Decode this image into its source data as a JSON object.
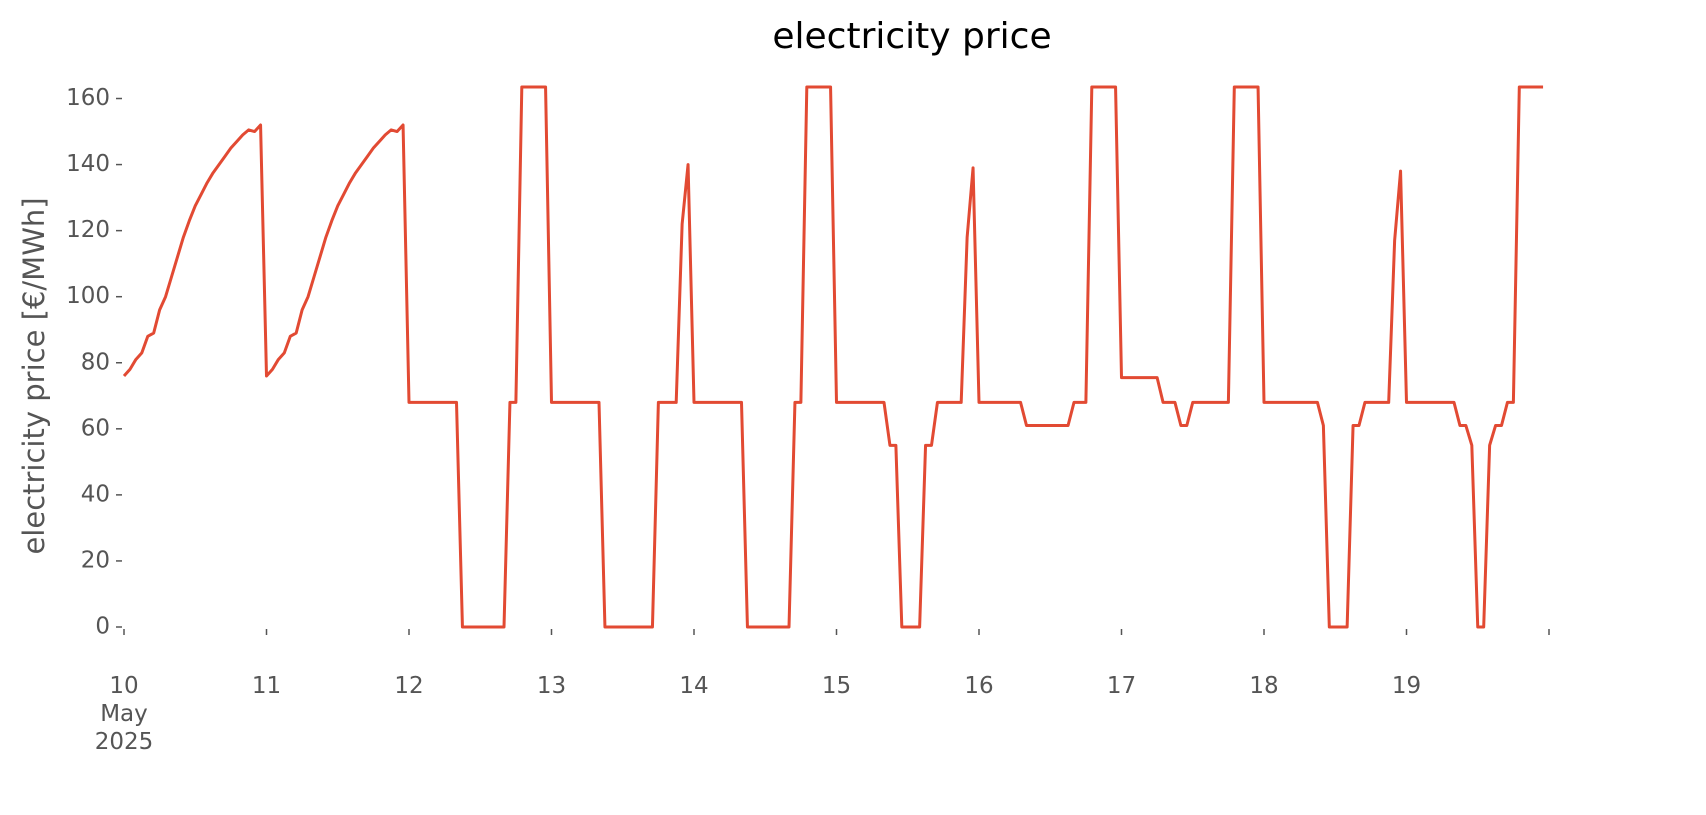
{
  "chart_data": {
    "type": "line",
    "title": "electricity price",
    "y_label": "electricity price [€/MWh]",
    "color": "#e24a33",
    "grid": false,
    "x": [
      "2025-05-10 00:00",
      "2025-05-10 01:00",
      "2025-05-10 02:00",
      "2025-05-10 03:00",
      "2025-05-10 04:00",
      "2025-05-10 05:00",
      "2025-05-10 06:00",
      "2025-05-10 07:00",
      "2025-05-10 08:00",
      "2025-05-10 09:00",
      "2025-05-10 10:00",
      "2025-05-10 11:00",
      "2025-05-10 12:00",
      "2025-05-10 13:00",
      "2025-05-10 14:00",
      "2025-05-10 15:00",
      "2025-05-10 16:00",
      "2025-05-10 17:00",
      "2025-05-10 18:00",
      "2025-05-10 19:00",
      "2025-05-10 20:00",
      "2025-05-10 21:00",
      "2025-05-10 22:00",
      "2025-05-10 23:00",
      "2025-05-11 00:00",
      "2025-05-11 01:00",
      "2025-05-11 02:00",
      "2025-05-11 03:00",
      "2025-05-11 04:00",
      "2025-05-11 05:00",
      "2025-05-11 06:00",
      "2025-05-11 07:00",
      "2025-05-11 08:00",
      "2025-05-11 09:00",
      "2025-05-11 10:00",
      "2025-05-11 11:00",
      "2025-05-11 12:00",
      "2025-05-11 13:00",
      "2025-05-11 14:00",
      "2025-05-11 15:00",
      "2025-05-11 16:00",
      "2025-05-11 17:00",
      "2025-05-11 18:00",
      "2025-05-11 19:00",
      "2025-05-11 20:00",
      "2025-05-11 21:00",
      "2025-05-11 22:00",
      "2025-05-11 23:00",
      "2025-05-12 00:00",
      "2025-05-12 08:00",
      "2025-05-12 09:00",
      "2025-05-12 16:00",
      "2025-05-12 17:00",
      "2025-05-12 18:00",
      "2025-05-12 19:00",
      "2025-05-12 23:00",
      "2025-05-13 00:00",
      "2025-05-13 08:00",
      "2025-05-13 09:00",
      "2025-05-13 17:00",
      "2025-05-13 18:00",
      "2025-05-13 21:00",
      "2025-05-13 22:00",
      "2025-05-13 23:00",
      "2025-05-14 00:00",
      "2025-05-14 08:00",
      "2025-05-14 09:00",
      "2025-05-14 16:00",
      "2025-05-14 17:00",
      "2025-05-14 18:00",
      "2025-05-14 19:00",
      "2025-05-14 23:00",
      "2025-05-15 00:00",
      "2025-05-15 08:00",
      "2025-05-15 09:00",
      "2025-05-15 10:00",
      "2025-05-15 11:00",
      "2025-05-15 14:00",
      "2025-05-15 15:00",
      "2025-05-15 16:00",
      "2025-05-15 17:00",
      "2025-05-15 21:00",
      "2025-05-15 22:00",
      "2025-05-15 23:00",
      "2025-05-16 00:00",
      "2025-05-16 07:00",
      "2025-05-16 08:00",
      "2025-05-16 15:00",
      "2025-05-16 16:00",
      "2025-05-16 18:00",
      "2025-05-16 19:00",
      "2025-05-16 23:00",
      "2025-05-17 00:00",
      "2025-05-17 06:00",
      "2025-05-17 07:00",
      "2025-05-17 09:00",
      "2025-05-17 10:00",
      "2025-05-17 11:00",
      "2025-05-17 12:00",
      "2025-05-17 18:00",
      "2025-05-17 19:00",
      "2025-05-17 23:00",
      "2025-05-18 00:00",
      "2025-05-18 09:00",
      "2025-05-18 10:00",
      "2025-05-18 11:00",
      "2025-05-18 14:00",
      "2025-05-18 15:00",
      "2025-05-18 16:00",
      "2025-05-18 17:00",
      "2025-05-18 21:00",
      "2025-05-18 22:00",
      "2025-05-18 23:00",
      "2025-05-19 00:00",
      "2025-05-19 08:00",
      "2025-05-19 09:00",
      "2025-05-19 10:00",
      "2025-05-19 11:00",
      "2025-05-19 12:00",
      "2025-05-19 13:00",
      "2025-05-19 14:00",
      "2025-05-19 15:00",
      "2025-05-19 16:00",
      "2025-05-19 17:00",
      "2025-05-19 18:00",
      "2025-05-19 19:00",
      "2025-05-19 23:00"
    ],
    "values": [
      76,
      78,
      81,
      83,
      88,
      89,
      96,
      100,
      106,
      112,
      118,
      123,
      127.5,
      131,
      134.5,
      137.5,
      140,
      142.5,
      145,
      147,
      149,
      150.5,
      150,
      152,
      76,
      78,
      81,
      83,
      88,
      89,
      96,
      100,
      106,
      112,
      118,
      123,
      127.5,
      131,
      134.5,
      137.5,
      140,
      142.5,
      145,
      147,
      149,
      150.5,
      150,
      152,
      68,
      68,
      0,
      0,
      68,
      68,
      163.5,
      163.5,
      68,
      68,
      0,
      0,
      68,
      68,
      122,
      140,
      68,
      68,
      0,
      0,
      68,
      68,
      163.5,
      163.5,
      68,
      68,
      55,
      55,
      0,
      0,
      55,
      55,
      68,
      68,
      118,
      139,
      68,
      68,
      61,
      61,
      68,
      68,
      163.5,
      163.5,
      75.5,
      75.5,
      68,
      68,
      61,
      61,
      68,
      68,
      163.5,
      163.5,
      68,
      68,
      61,
      0,
      0,
      61,
      61,
      68,
      68,
      117,
      138,
      68,
      68,
      61,
      61,
      55,
      0,
      0,
      55,
      61,
      61,
      68,
      68,
      163.5,
      163.5
    ],
    "xlim": [
      "2025-05-10 00:00",
      "2025-05-20 00:00"
    ],
    "xticks": [
      {
        "value": "2025-05-10 00:00",
        "label": "10\nMay\n2025"
      },
      {
        "value": "2025-05-11 00:00",
        "label": "11"
      },
      {
        "value": "2025-05-12 00:00",
        "label": "12"
      },
      {
        "value": "2025-05-13 00:00",
        "label": "13"
      },
      {
        "value": "2025-05-14 00:00",
        "label": "14"
      },
      {
        "value": "2025-05-15 00:00",
        "label": "15"
      },
      {
        "value": "2025-05-16 00:00",
        "label": "16"
      },
      {
        "value": "2025-05-17 00:00",
        "label": "17"
      },
      {
        "value": "2025-05-18 00:00",
        "label": "18"
      },
      {
        "value": "2025-05-19 00:00",
        "label": "19"
      },
      {
        "value": "2025-05-20 00:00",
        "label": null
      }
    ],
    "ylim": [
      0,
      165
    ],
    "yticks": [
      0,
      20,
      40,
      60,
      80,
      100,
      120,
      140,
      160
    ]
  }
}
